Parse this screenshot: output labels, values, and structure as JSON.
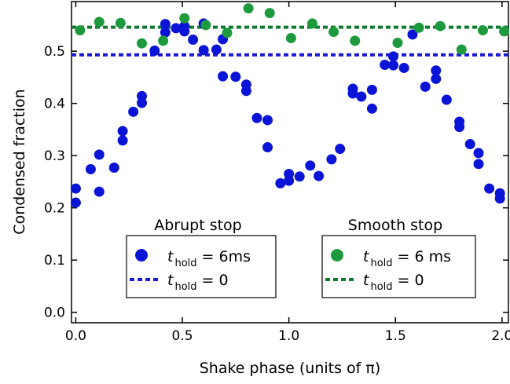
{
  "chart_data": {
    "type": "scatter",
    "xlabel": "Shake phase (units of π)",
    "ylabel": "Condensed fraction",
    "xlim": [
      -0.02,
      2.03
    ],
    "ylim": [
      -0.02,
      0.595
    ],
    "xticks": [
      "0.0",
      "0.5",
      "1.0",
      "1.5",
      "2.0"
    ],
    "yticks": [
      "0.0",
      "0.1",
      "0.2",
      "0.3",
      "0.4",
      "0.5"
    ],
    "groups": [
      {
        "title": "Abrupt stop",
        "marker_color": "#0a14d6",
        "line_color": "#1a1ad6",
        "legend_points": {
          "symbol": "t",
          "sub": "hold",
          "rest": " = 6ms"
        },
        "legend_line": {
          "symbol": "t",
          "sub": "hold",
          "rest": " = 0"
        },
        "line_value": 0.493,
        "points": [
          [
            0.0,
            0.237
          ],
          [
            0.0,
            0.21
          ],
          [
            0.07,
            0.274
          ],
          [
            0.11,
            0.302
          ],
          [
            0.11,
            0.231
          ],
          [
            0.18,
            0.277
          ],
          [
            0.22,
            0.347
          ],
          [
            0.22,
            0.329
          ],
          [
            0.27,
            0.384
          ],
          [
            0.31,
            0.414
          ],
          [
            0.31,
            0.401
          ],
          [
            0.37,
            0.501
          ],
          [
            0.42,
            0.552
          ],
          [
            0.42,
            0.536
          ],
          [
            0.47,
            0.544
          ],
          [
            0.51,
            0.548
          ],
          [
            0.51,
            0.538
          ],
          [
            0.55,
            0.522
          ],
          [
            0.6,
            0.553
          ],
          [
            0.6,
            0.502
          ],
          [
            0.66,
            0.503
          ],
          [
            0.69,
            0.523
          ],
          [
            0.69,
            0.452
          ],
          [
            0.75,
            0.451
          ],
          [
            0.8,
            0.436
          ],
          [
            0.8,
            0.424
          ],
          [
            0.85,
            0.372
          ],
          [
            0.9,
            0.368
          ],
          [
            0.9,
            0.316
          ],
          [
            0.96,
            0.247
          ],
          [
            1.0,
            0.265
          ],
          [
            1.0,
            0.252
          ],
          [
            1.05,
            0.26
          ],
          [
            1.1,
            0.281
          ],
          [
            1.14,
            0.261
          ],
          [
            1.2,
            0.293
          ],
          [
            1.24,
            0.313
          ],
          [
            1.3,
            0.428
          ],
          [
            1.3,
            0.419
          ],
          [
            1.34,
            0.413
          ],
          [
            1.39,
            0.426
          ],
          [
            1.39,
            0.39
          ],
          [
            1.45,
            0.474
          ],
          [
            1.49,
            0.49
          ],
          [
            1.49,
            0.473
          ],
          [
            1.54,
            0.468
          ],
          [
            1.58,
            0.532
          ],
          [
            1.64,
            0.432
          ],
          [
            1.69,
            0.463
          ],
          [
            1.69,
            0.447
          ],
          [
            1.74,
            0.407
          ],
          [
            1.8,
            0.365
          ],
          [
            1.8,
            0.355
          ],
          [
            1.85,
            0.322
          ],
          [
            1.89,
            0.305
          ],
          [
            1.89,
            0.284
          ],
          [
            1.94,
            0.237
          ],
          [
            1.99,
            0.228
          ],
          [
            1.99,
            0.218
          ]
        ]
      },
      {
        "title": "Smooth stop",
        "marker_color": "#1d9a3e",
        "line_color": "#0e7a2e",
        "legend_points": {
          "symbol": "t",
          "sub": "hold",
          "rest": " = 6 ms"
        },
        "legend_line": {
          "symbol": "t",
          "sub": "hold",
          "rest": " = 0"
        },
        "line_value": 0.546,
        "points": [
          [
            0.02,
            0.54
          ],
          [
            0.11,
            0.556
          ],
          [
            0.21,
            0.554
          ],
          [
            0.31,
            0.515
          ],
          [
            0.41,
            0.52
          ],
          [
            0.51,
            0.563
          ],
          [
            0.61,
            0.55
          ],
          [
            0.71,
            0.535
          ],
          [
            0.81,
            0.582
          ],
          [
            0.91,
            0.573
          ],
          [
            1.01,
            0.525
          ],
          [
            1.11,
            0.553
          ],
          [
            1.21,
            0.537
          ],
          [
            1.31,
            0.52
          ],
          [
            1.51,
            0.516
          ],
          [
            1.61,
            0.545
          ],
          [
            1.71,
            0.548
          ],
          [
            1.81,
            0.503
          ],
          [
            1.91,
            0.54
          ],
          [
            2.01,
            0.538
          ]
        ]
      }
    ]
  }
}
